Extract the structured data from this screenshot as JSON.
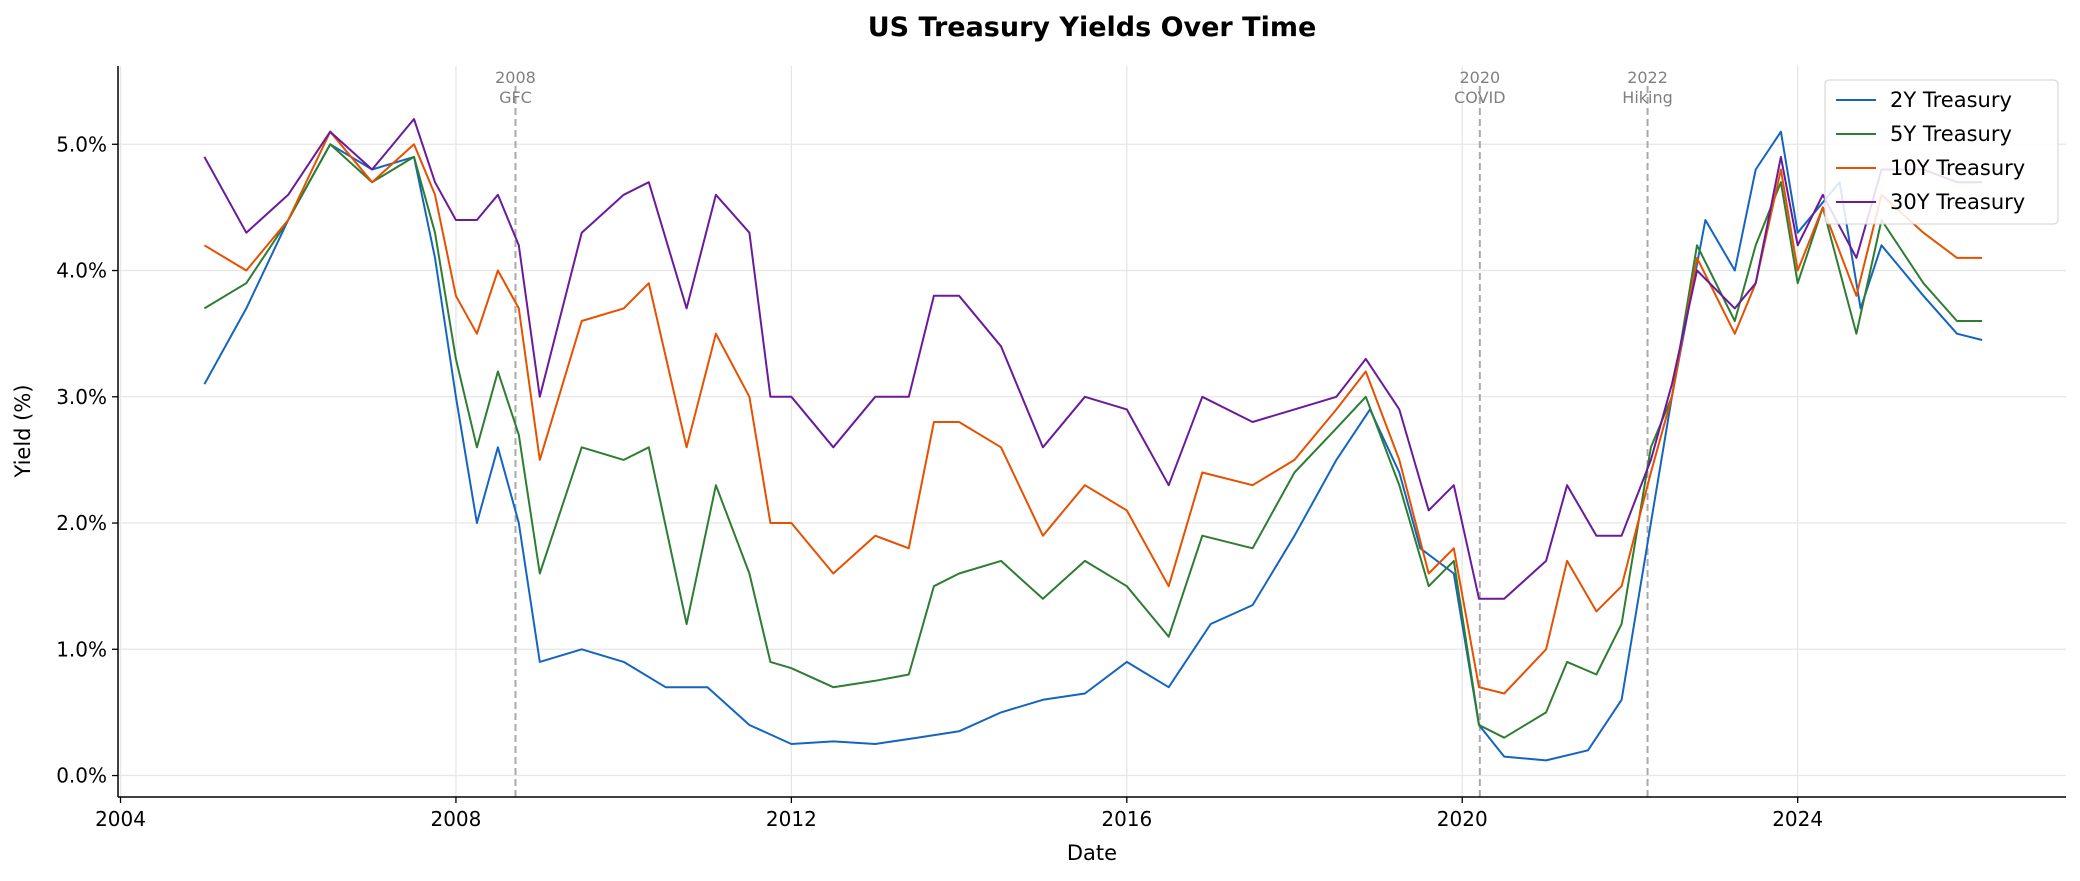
{
  "chart_data": {
    "type": "line",
    "title": "US Treasury Yields Over Time",
    "xlabel": "Date",
    "ylabel": "Yield (%)",
    "xlim": [
      2003.97,
      2027.2
    ],
    "ylim": [
      -0.17,
      5.62
    ],
    "x_ticks": [
      2004,
      2008,
      2012,
      2016,
      2020,
      2024
    ],
    "x_tick_labels": [
      "2004",
      "2008",
      "2012",
      "2016",
      "2020",
      "2024"
    ],
    "y_ticks": [
      0,
      1,
      2,
      3,
      4,
      5
    ],
    "y_tick_labels": [
      "0.0%",
      "1.0%",
      "2.0%",
      "3.0%",
      "4.0%",
      "5.0%"
    ],
    "grid": true,
    "legend_position": "top-right",
    "events": [
      {
        "x": 2008.71,
        "line1": "2008",
        "line2": "GFC"
      },
      {
        "x": 2020.21,
        "line1": "2020",
        "line2": "COVID"
      },
      {
        "x": 2022.21,
        "line1": "2022",
        "line2": "Hiking"
      }
    ],
    "series": [
      {
        "name": "2Y Treasury",
        "color": "#1565c0",
        "points": [
          [
            2005.0,
            3.1
          ],
          [
            2005.5,
            3.7
          ],
          [
            2006.0,
            4.4
          ],
          [
            2006.5,
            5.0
          ],
          [
            2007.0,
            4.8
          ],
          [
            2007.5,
            4.9
          ],
          [
            2007.75,
            4.1
          ],
          [
            2008.0,
            3.0
          ],
          [
            2008.25,
            2.0
          ],
          [
            2008.5,
            2.6
          ],
          [
            2008.75,
            2.0
          ],
          [
            2009.0,
            0.9
          ],
          [
            2009.5,
            1.0
          ],
          [
            2010.0,
            0.9
          ],
          [
            2010.5,
            0.7
          ],
          [
            2011.0,
            0.7
          ],
          [
            2011.5,
            0.4
          ],
          [
            2012.0,
            0.25
          ],
          [
            2012.5,
            0.27
          ],
          [
            2013.0,
            0.25
          ],
          [
            2013.5,
            0.3
          ],
          [
            2014.0,
            0.35
          ],
          [
            2014.5,
            0.5
          ],
          [
            2015.0,
            0.6
          ],
          [
            2015.5,
            0.65
          ],
          [
            2016.0,
            0.9
          ],
          [
            2016.5,
            0.7
          ],
          [
            2017.0,
            1.2
          ],
          [
            2017.5,
            1.35
          ],
          [
            2018.0,
            1.9
          ],
          [
            2018.5,
            2.5
          ],
          [
            2018.9,
            2.9
          ],
          [
            2019.25,
            2.4
          ],
          [
            2019.5,
            1.8
          ],
          [
            2019.9,
            1.6
          ],
          [
            2020.2,
            0.4
          ],
          [
            2020.5,
            0.15
          ],
          [
            2021.0,
            0.12
          ],
          [
            2021.5,
            0.2
          ],
          [
            2021.9,
            0.6
          ],
          [
            2022.25,
            2.0
          ],
          [
            2022.5,
            3.0
          ],
          [
            2022.9,
            4.4
          ],
          [
            2023.25,
            4.0
          ],
          [
            2023.5,
            4.8
          ],
          [
            2023.8,
            5.1
          ],
          [
            2024.0,
            4.3
          ],
          [
            2024.5,
            4.7
          ],
          [
            2024.75,
            3.7
          ],
          [
            2025.0,
            4.2
          ],
          [
            2025.5,
            3.8
          ],
          [
            2025.9,
            3.5
          ],
          [
            2026.2,
            3.45
          ]
        ]
      },
      {
        "name": "5Y Treasury",
        "color": "#2e7d32",
        "points": [
          [
            2005.0,
            3.7
          ],
          [
            2005.5,
            3.9
          ],
          [
            2006.0,
            4.4
          ],
          [
            2006.5,
            5.0
          ],
          [
            2007.0,
            4.7
          ],
          [
            2007.5,
            4.9
          ],
          [
            2007.75,
            4.3
          ],
          [
            2008.0,
            3.3
          ],
          [
            2008.25,
            2.6
          ],
          [
            2008.5,
            3.2
          ],
          [
            2008.75,
            2.7
          ],
          [
            2009.0,
            1.6
          ],
          [
            2009.5,
            2.6
          ],
          [
            2010.0,
            2.5
          ],
          [
            2010.3,
            2.6
          ],
          [
            2010.75,
            1.2
          ],
          [
            2011.1,
            2.3
          ],
          [
            2011.5,
            1.6
          ],
          [
            2011.75,
            0.9
          ],
          [
            2012.0,
            0.85
          ],
          [
            2012.5,
            0.7
          ],
          [
            2013.0,
            0.75
          ],
          [
            2013.4,
            0.8
          ],
          [
            2013.7,
            1.5
          ],
          [
            2014.0,
            1.6
          ],
          [
            2014.5,
            1.7
          ],
          [
            2015.0,
            1.4
          ],
          [
            2015.5,
            1.7
          ],
          [
            2016.0,
            1.5
          ],
          [
            2016.5,
            1.1
          ],
          [
            2016.9,
            1.9
          ],
          [
            2017.5,
            1.8
          ],
          [
            2018.0,
            2.4
          ],
          [
            2018.5,
            2.75
          ],
          [
            2018.85,
            3.0
          ],
          [
            2019.25,
            2.3
          ],
          [
            2019.6,
            1.5
          ],
          [
            2019.9,
            1.7
          ],
          [
            2020.2,
            0.4
          ],
          [
            2020.5,
            0.3
          ],
          [
            2021.0,
            0.5
          ],
          [
            2021.25,
            0.9
          ],
          [
            2021.6,
            0.8
          ],
          [
            2021.9,
            1.2
          ],
          [
            2022.25,
            2.6
          ],
          [
            2022.5,
            3.0
          ],
          [
            2022.8,
            4.2
          ],
          [
            2023.25,
            3.6
          ],
          [
            2023.5,
            4.2
          ],
          [
            2023.8,
            4.7
          ],
          [
            2024.0,
            3.9
          ],
          [
            2024.3,
            4.5
          ],
          [
            2024.7,
            3.5
          ],
          [
            2025.0,
            4.4
          ],
          [
            2025.5,
            3.9
          ],
          [
            2025.9,
            3.6
          ],
          [
            2026.2,
            3.6
          ]
        ]
      },
      {
        "name": "10Y Treasury",
        "color": "#e65100",
        "points": [
          [
            2005.0,
            4.2
          ],
          [
            2005.5,
            4.0
          ],
          [
            2006.0,
            4.4
          ],
          [
            2006.5,
            5.1
          ],
          [
            2007.0,
            4.7
          ],
          [
            2007.5,
            5.0
          ],
          [
            2007.75,
            4.6
          ],
          [
            2008.0,
            3.8
          ],
          [
            2008.25,
            3.5
          ],
          [
            2008.5,
            4.0
          ],
          [
            2008.75,
            3.7
          ],
          [
            2009.0,
            2.5
          ],
          [
            2009.5,
            3.6
          ],
          [
            2010.0,
            3.7
          ],
          [
            2010.3,
            3.9
          ],
          [
            2010.75,
            2.6
          ],
          [
            2011.1,
            3.5
          ],
          [
            2011.5,
            3.0
          ],
          [
            2011.75,
            2.0
          ],
          [
            2012.0,
            2.0
          ],
          [
            2012.5,
            1.6
          ],
          [
            2013.0,
            1.9
          ],
          [
            2013.4,
            1.8
          ],
          [
            2013.7,
            2.8
          ],
          [
            2014.0,
            2.8
          ],
          [
            2014.5,
            2.6
          ],
          [
            2015.0,
            1.9
          ],
          [
            2015.5,
            2.3
          ],
          [
            2016.0,
            2.1
          ],
          [
            2016.5,
            1.5
          ],
          [
            2016.9,
            2.4
          ],
          [
            2017.5,
            2.3
          ],
          [
            2018.0,
            2.5
          ],
          [
            2018.5,
            2.9
          ],
          [
            2018.85,
            3.2
          ],
          [
            2019.25,
            2.5
          ],
          [
            2019.6,
            1.6
          ],
          [
            2019.9,
            1.8
          ],
          [
            2020.2,
            0.7
          ],
          [
            2020.5,
            0.65
          ],
          [
            2021.0,
            1.0
          ],
          [
            2021.25,
            1.7
          ],
          [
            2021.6,
            1.3
          ],
          [
            2021.9,
            1.5
          ],
          [
            2022.25,
            2.4
          ],
          [
            2022.5,
            3.0
          ],
          [
            2022.8,
            4.1
          ],
          [
            2023.25,
            3.5
          ],
          [
            2023.5,
            3.9
          ],
          [
            2023.8,
            4.8
          ],
          [
            2024.0,
            4.0
          ],
          [
            2024.3,
            4.5
          ],
          [
            2024.7,
            3.8
          ],
          [
            2025.0,
            4.6
          ],
          [
            2025.5,
            4.3
          ],
          [
            2025.9,
            4.1
          ],
          [
            2026.2,
            4.1
          ]
        ]
      },
      {
        "name": "30Y Treasury",
        "color": "#6a1b9a",
        "points": [
          [
            2005.0,
            4.9
          ],
          [
            2005.5,
            4.3
          ],
          [
            2006.0,
            4.6
          ],
          [
            2006.5,
            5.1
          ],
          [
            2007.0,
            4.8
          ],
          [
            2007.5,
            5.2
          ],
          [
            2007.75,
            4.7
          ],
          [
            2008.0,
            4.4
          ],
          [
            2008.25,
            4.4
          ],
          [
            2008.5,
            4.6
          ],
          [
            2008.75,
            4.2
          ],
          [
            2009.0,
            3.0
          ],
          [
            2009.5,
            4.3
          ],
          [
            2010.0,
            4.6
          ],
          [
            2010.3,
            4.7
          ],
          [
            2010.75,
            3.7
          ],
          [
            2011.1,
            4.6
          ],
          [
            2011.5,
            4.3
          ],
          [
            2011.75,
            3.0
          ],
          [
            2012.0,
            3.0
          ],
          [
            2012.5,
            2.6
          ],
          [
            2013.0,
            3.0
          ],
          [
            2013.4,
            3.0
          ],
          [
            2013.7,
            3.8
          ],
          [
            2014.0,
            3.8
          ],
          [
            2014.5,
            3.4
          ],
          [
            2015.0,
            2.6
          ],
          [
            2015.5,
            3.0
          ],
          [
            2016.0,
            2.9
          ],
          [
            2016.5,
            2.3
          ],
          [
            2016.9,
            3.0
          ],
          [
            2017.5,
            2.8
          ],
          [
            2018.0,
            2.9
          ],
          [
            2018.5,
            3.0
          ],
          [
            2018.85,
            3.3
          ],
          [
            2019.25,
            2.9
          ],
          [
            2019.6,
            2.1
          ],
          [
            2019.9,
            2.3
          ],
          [
            2020.2,
            1.4
          ],
          [
            2020.5,
            1.4
          ],
          [
            2021.0,
            1.7
          ],
          [
            2021.25,
            2.3
          ],
          [
            2021.6,
            1.9
          ],
          [
            2021.9,
            1.9
          ],
          [
            2022.25,
            2.5
          ],
          [
            2022.5,
            3.1
          ],
          [
            2022.8,
            4.0
          ],
          [
            2023.25,
            3.7
          ],
          [
            2023.5,
            3.9
          ],
          [
            2023.8,
            4.9
          ],
          [
            2024.0,
            4.2
          ],
          [
            2024.3,
            4.6
          ],
          [
            2024.7,
            4.1
          ],
          [
            2025.0,
            4.8
          ],
          [
            2025.5,
            4.8
          ],
          [
            2025.9,
            4.7
          ],
          [
            2026.2,
            4.7
          ]
        ]
      }
    ]
  }
}
